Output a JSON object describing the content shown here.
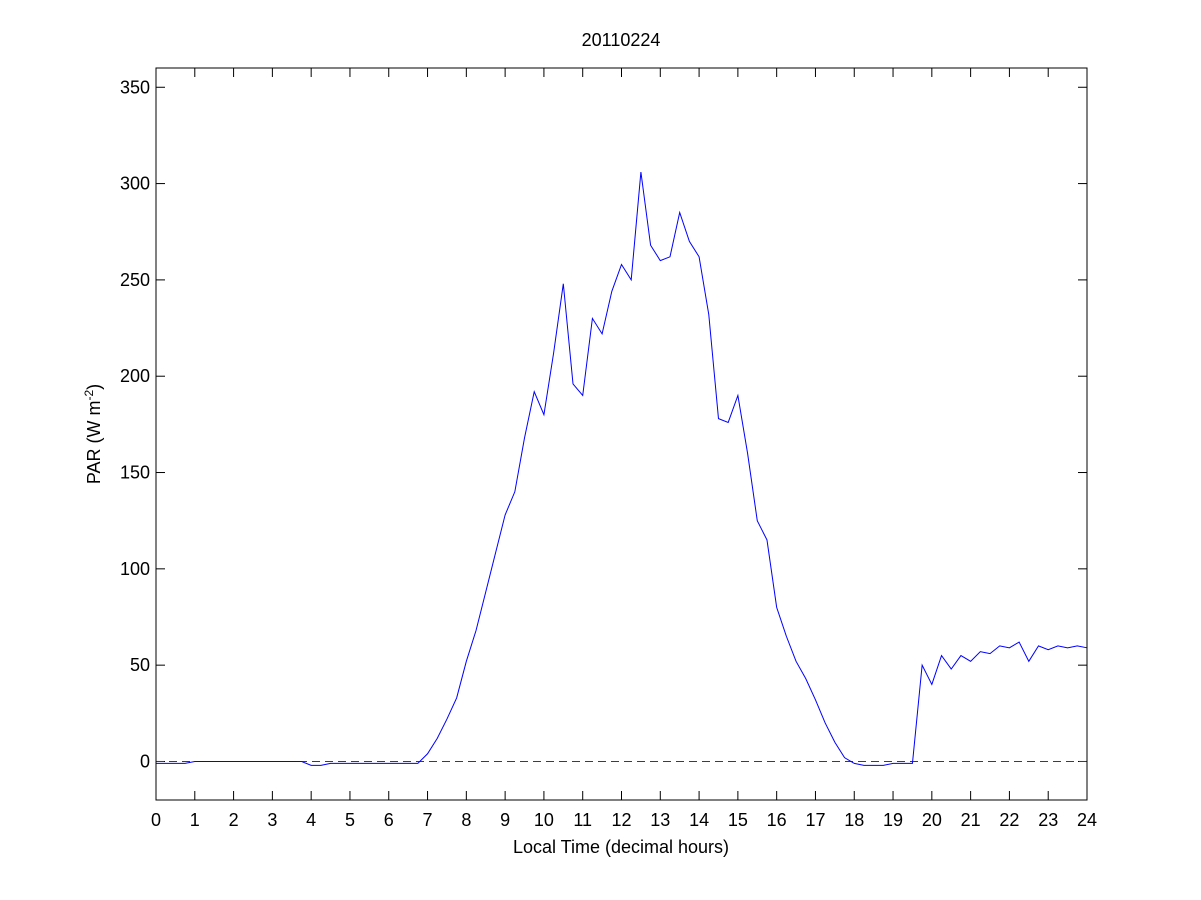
{
  "chart_data": {
    "type": "line",
    "title": "20110224",
    "xlabel": "Local Time (decimal hours)",
    "ylabel": {
      "text": "PAR (W m",
      "superscript": "-2",
      "suffix": ")"
    },
    "x": [
      0,
      0.25,
      0.5,
      0.75,
      1,
      1.25,
      1.5,
      1.75,
      2,
      2.25,
      2.5,
      2.75,
      3,
      3.25,
      3.5,
      3.75,
      4,
      4.25,
      4.5,
      4.75,
      5,
      5.25,
      5.5,
      5.75,
      6,
      6.25,
      6.5,
      6.75,
      7,
      7.25,
      7.5,
      7.75,
      8,
      8.25,
      8.5,
      8.75,
      9,
      9.25,
      9.5,
      9.75,
      10,
      10.25,
      10.5,
      10.75,
      11,
      11.25,
      11.5,
      11.75,
      12,
      12.25,
      12.5,
      12.75,
      13,
      13.25,
      13.5,
      13.75,
      14,
      14.25,
      14.5,
      14.75,
      15,
      15.25,
      15.5,
      15.75,
      16,
      16.25,
      16.5,
      16.75,
      17,
      17.25,
      17.5,
      17.75,
      18,
      18.25,
      18.5,
      18.75,
      19,
      19.25,
      19.5,
      19.75,
      20,
      20.25,
      20.5,
      20.75,
      21,
      21.25,
      21.5,
      21.75,
      22,
      22.25,
      22.5,
      22.75,
      23,
      23.25,
      23.5,
      23.75,
      24
    ],
    "series": [
      {
        "color": "#0000ff",
        "values": [
          -1,
          -1,
          -1,
          -1,
          0,
          0,
          0,
          0,
          0,
          0,
          0,
          0,
          0,
          0,
          0,
          0,
          -2,
          -2,
          -1,
          -1,
          -1,
          -1,
          -1,
          -1,
          -1,
          -1,
          -1,
          -1,
          4,
          12,
          22,
          33,
          52,
          68,
          88,
          108,
          128,
          140,
          168,
          192,
          180,
          212,
          248,
          196,
          190,
          230,
          222,
          244,
          258,
          250,
          306,
          268,
          260,
          262,
          285,
          270,
          262,
          232,
          178,
          176,
          190,
          160,
          125,
          115,
          80,
          65,
          52,
          43,
          32,
          20,
          10,
          2,
          -1,
          -2,
          -2,
          -2,
          -1,
          -1,
          -1,
          50,
          40,
          55,
          48,
          55,
          52,
          57,
          56,
          60,
          59,
          62,
          52,
          60,
          58,
          60,
          59,
          60,
          59
        ]
      }
    ],
    "reference_line": {
      "value": 0,
      "color": "#cc0000"
    },
    "xlim": [
      0,
      24
    ],
    "ylim": [
      -20,
      360
    ],
    "xticks": [
      0,
      1,
      2,
      3,
      4,
      5,
      6,
      7,
      8,
      9,
      10,
      11,
      12,
      13,
      14,
      15,
      16,
      17,
      18,
      19,
      20,
      21,
      22,
      23,
      24
    ],
    "yticks": [
      0,
      50,
      100,
      150,
      200,
      250,
      300,
      350
    ]
  }
}
